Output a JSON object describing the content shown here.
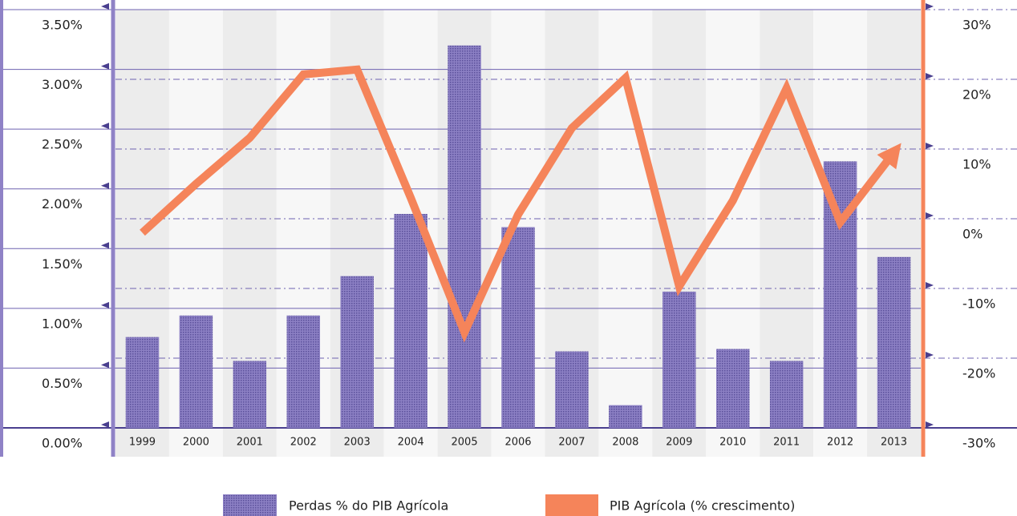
{
  "chart_data": {
    "type": "bar-line",
    "categories": [
      "1999",
      "2000",
      "2001",
      "2002",
      "2003",
      "2004",
      "2005",
      "2006",
      "2007",
      "2008",
      "2009",
      "2010",
      "2011",
      "2012",
      "2013"
    ],
    "series": [
      {
        "name": "Perdas % do PIB Agrícola",
        "color": "#7a6db4",
        "type": "bar",
        "values": [
          0.76,
          0.94,
          0.56,
          0.94,
          1.27,
          1.79,
          3.2,
          1.68,
          0.64,
          0.19,
          1.14,
          0.66,
          0.56,
          2.23,
          1.43
        ]
      },
      {
        "name": "PIB Agrícola (% crescimento)",
        "color": "#f5845a",
        "type": "line",
        "axis": "y2",
        "values": [
          -2,
          5,
          11.6,
          20.7,
          21.4,
          3,
          -16.3,
          0.6,
          13,
          20.2,
          -9.7,
          2.6,
          18.7,
          -0.5,
          9.5
        ]
      }
    ],
    "ylim": [
      0,
      3.5
    ],
    "yticks": [
      {
        "value": 0,
        "label": "0.00%"
      },
      {
        "value": 0.5,
        "label": "0.50%"
      },
      {
        "value": 1,
        "label": "1.00%"
      },
      {
        "value": 1.5,
        "label": "1.50%"
      },
      {
        "value": 2,
        "label": "2.00%"
      },
      {
        "value": 2.5,
        "label": "2.50%"
      },
      {
        "value": 3,
        "label": "3.00%"
      },
      {
        "value": 3.5,
        "label": "3.50%"
      }
    ],
    "y2lim": [
      -30,
      30
    ],
    "y2ticks": [
      {
        "value": -30,
        "label": "-30%"
      },
      {
        "value": -20,
        "label": "-20%"
      },
      {
        "value": -10,
        "label": "-10%"
      },
      {
        "value": 0,
        "label": "0%"
      },
      {
        "value": 10,
        "label": "10%"
      },
      {
        "value": 20,
        "label": "20%"
      },
      {
        "value": 30,
        "label": "30%"
      }
    ],
    "grid": true
  }
}
